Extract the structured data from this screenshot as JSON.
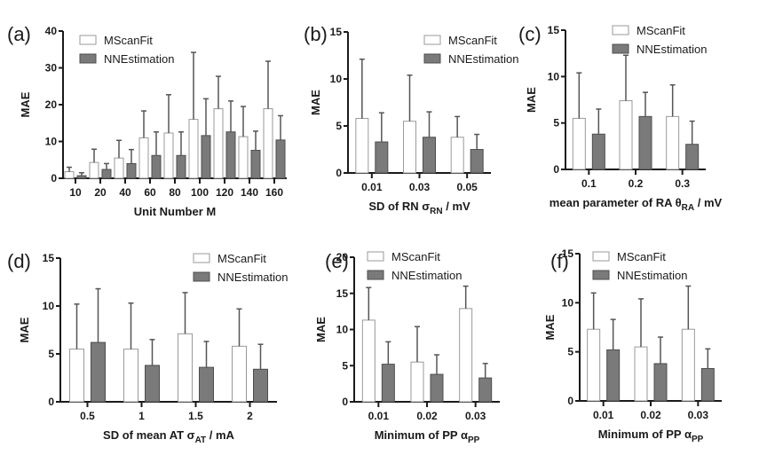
{
  "figure": {
    "colors": {
      "MScanFit": "#ffffff",
      "MScanFit_edge": "#9a9a9a",
      "NNEstimation": "#7a7a7a",
      "NNEstimation_edge": "#4d4d4d",
      "error_bar": "#555555",
      "axis": "#1a1a1a"
    }
  },
  "chart_data": [
    {
      "panel": "(a)",
      "type": "bar",
      "title": "",
      "xlabel": "Unit Number M",
      "xlabel_sub": "",
      "xlabel_suffix": "",
      "ylabel": "MAE",
      "ylim": [
        0,
        40
      ],
      "yticks": [
        0,
        10,
        20,
        30,
        40
      ],
      "categories": [
        "10",
        "20",
        "40",
        "60",
        "80",
        "100",
        "120",
        "140",
        "160"
      ],
      "series": [
        {
          "name": "MScanFit",
          "values": [
            1.8,
            4.3,
            5.5,
            11.0,
            12.3,
            16.0,
            18.9,
            11.3,
            18.9
          ],
          "errors": [
            1.2,
            3.6,
            4.8,
            7.3,
            10.4,
            18.2,
            8.8,
            8.2,
            12.9
          ]
        },
        {
          "name": "NNEstimation",
          "values": [
            0.7,
            2.4,
            4.0,
            6.2,
            6.2,
            11.6,
            12.6,
            7.6,
            10.4
          ],
          "errors": [
            0.8,
            1.6,
            3.8,
            6.4,
            6.4,
            10.0,
            8.4,
            5.2,
            6.6
          ]
        }
      ],
      "legend": [
        "MScanFit",
        "NNEstimation"
      ],
      "legend_position": "top-left",
      "grid": false
    },
    {
      "panel": "(b)",
      "type": "bar",
      "title": "",
      "xlabel": "SD of RN σ",
      "xlabel_sub": "RN",
      "xlabel_suffix": " / mV",
      "ylabel": "MAE",
      "ylim": [
        0,
        15
      ],
      "yticks": [
        0,
        5,
        10,
        15
      ],
      "categories": [
        "0.01",
        "0.03",
        "0.05"
      ],
      "series": [
        {
          "name": "MScanFit",
          "values": [
            5.8,
            5.5,
            3.8
          ],
          "errors": [
            6.3,
            4.9,
            2.2
          ]
        },
        {
          "name": "NNEstimation",
          "values": [
            3.3,
            3.8,
            2.5
          ],
          "errors": [
            3.1,
            2.7,
            1.6
          ]
        }
      ],
      "legend": [
        "MScanFit",
        "NNEstimation"
      ],
      "legend_position": "top-right",
      "grid": false
    },
    {
      "panel": "(c)",
      "type": "bar",
      "title": "",
      "xlabel": "mean parameter of RA θ",
      "xlabel_sub": "RA",
      "xlabel_suffix": " / mV",
      "ylabel": "MAE",
      "ylim": [
        0,
        15
      ],
      "yticks": [
        0,
        5,
        10,
        15
      ],
      "categories": [
        "0.1",
        "0.2",
        "0.3"
      ],
      "series": [
        {
          "name": "MScanFit",
          "values": [
            5.5,
            7.4,
            5.7
          ],
          "errors": [
            4.9,
            4.9,
            3.4
          ]
        },
        {
          "name": "NNEstimation",
          "values": [
            3.8,
            5.7,
            2.7
          ],
          "errors": [
            2.7,
            2.6,
            2.5
          ]
        }
      ],
      "legend": [
        "MScanFit",
        "NNEstimation"
      ],
      "legend_position": "top-right",
      "grid": false
    },
    {
      "panel": "(d)",
      "type": "bar",
      "title": "",
      "xlabel": "SD of mean AT σ",
      "xlabel_sub": "AT",
      "xlabel_suffix": " / mA",
      "ylabel": "MAE",
      "ylim": [
        0,
        15
      ],
      "yticks": [
        0,
        5,
        10,
        15
      ],
      "categories": [
        "0.5",
        "1",
        "1.5",
        "2"
      ],
      "series": [
        {
          "name": "MScanFit",
          "values": [
            5.5,
            5.5,
            7.1,
            5.8
          ],
          "errors": [
            4.7,
            4.8,
            4.3,
            3.9
          ]
        },
        {
          "name": "NNEstimation",
          "values": [
            6.2,
            3.8,
            3.6,
            3.4
          ],
          "errors": [
            5.6,
            2.7,
            2.7,
            2.6
          ]
        }
      ],
      "legend": [
        "MScanFit",
        "NNEstimation"
      ],
      "legend_position": "top-right",
      "grid": false
    },
    {
      "panel": "(e)",
      "type": "bar",
      "title": "",
      "xlabel": "Minimum of PP α",
      "xlabel_sub": "PP",
      "xlabel_suffix": "",
      "ylabel": "MAE",
      "ylim": [
        0,
        20
      ],
      "yticks": [
        0,
        5,
        10,
        15,
        20
      ],
      "categories": [
        "0.01",
        "0.02",
        "0.03"
      ],
      "series": [
        {
          "name": "MScanFit",
          "values": [
            11.3,
            5.5,
            12.9
          ],
          "errors": [
            4.5,
            4.9,
            3.1
          ]
        },
        {
          "name": "NNEstimation",
          "values": [
            5.2,
            3.8,
            3.3
          ],
          "errors": [
            3.1,
            2.7,
            2.0
          ]
        }
      ],
      "legend": [
        "MScanFit",
        "NNEstimation"
      ],
      "legend_position": "top",
      "grid": false
    },
    {
      "panel": "(f)",
      "type": "bar",
      "title": "",
      "xlabel": "Minimum of PP α",
      "xlabel_sub": "PP",
      "xlabel_suffix": "",
      "ylabel": "MAE",
      "ylim": [
        0,
        15
      ],
      "yticks": [
        0,
        5,
        10,
        15
      ],
      "categories": [
        "0.01",
        "0.02",
        "0.03"
      ],
      "series": [
        {
          "name": "MScanFit",
          "values": [
            7.3,
            5.5,
            7.3
          ],
          "errors": [
            3.7,
            4.9,
            4.4
          ]
        },
        {
          "name": "NNEstimation",
          "values": [
            5.2,
            3.8,
            3.3
          ],
          "errors": [
            3.1,
            2.7,
            2.0
          ]
        }
      ],
      "legend": [
        "MScanFit",
        "NNEstimation"
      ],
      "legend_position": "top",
      "grid": false
    }
  ]
}
